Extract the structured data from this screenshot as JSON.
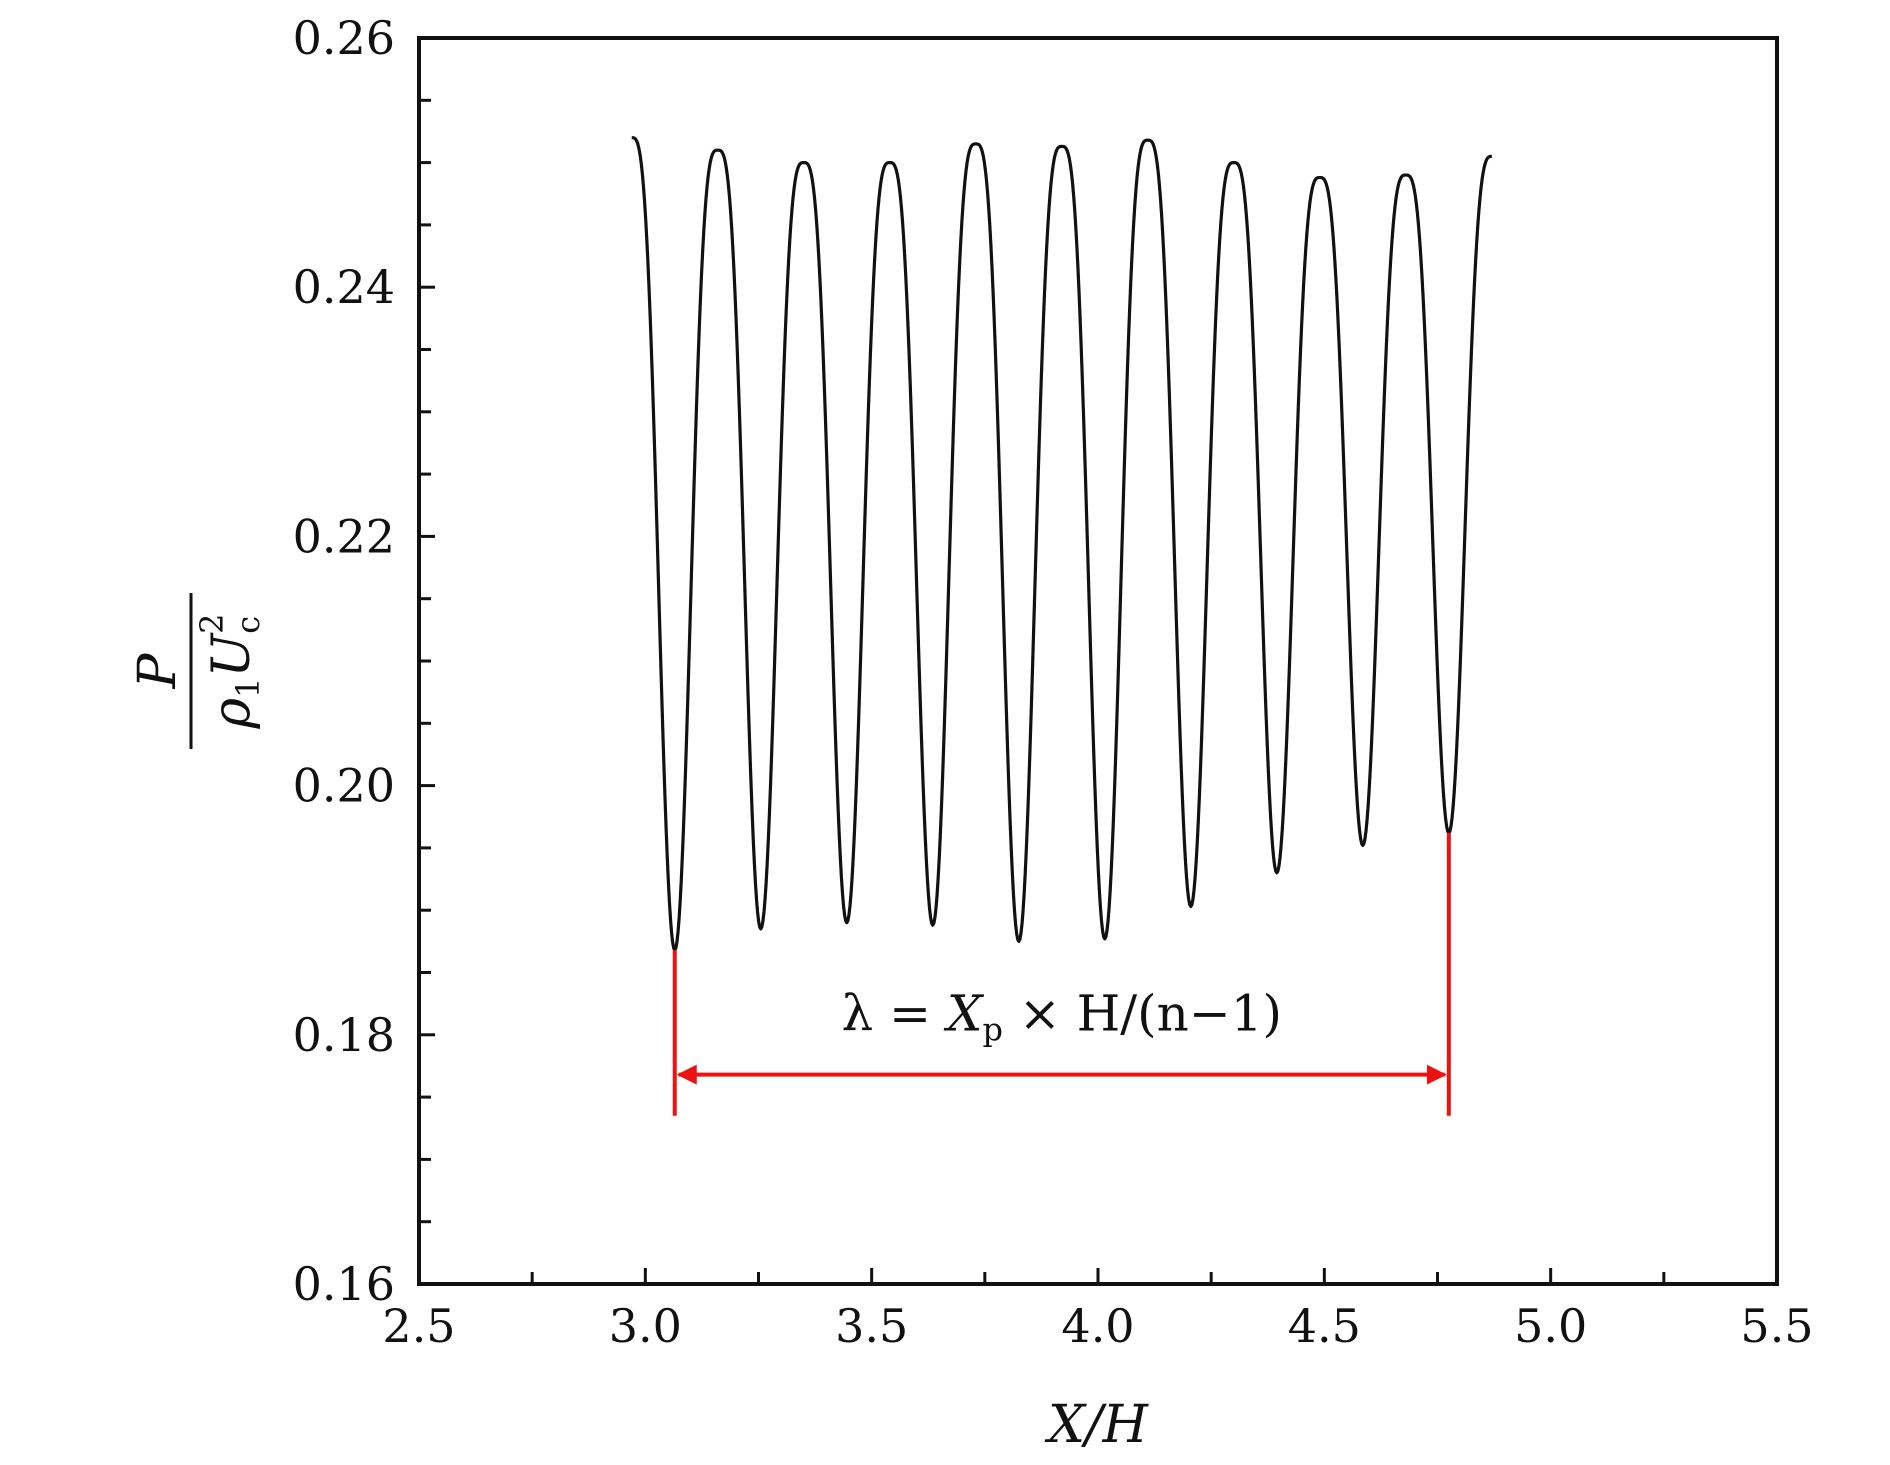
{
  "chart_data": {
    "type": "line",
    "xlabel": "X/H",
    "ylabel": {
      "numerator": "P",
      "denominator": "ρ₁U_c²",
      "denominator_parts": {
        "rho": "ρ",
        "rho_sub": "1",
        "u": "U",
        "u_sub": "c",
        "u_sup": "2"
      }
    },
    "xlim": [
      2.5,
      5.5
    ],
    "ylim": [
      0.16,
      0.26
    ],
    "x_ticks": [
      "2.5",
      "3.0",
      "3.5",
      "4.0",
      "4.5",
      "5.0",
      "5.5"
    ],
    "y_ticks": [
      "0.16",
      "0.18",
      "0.20",
      "0.22",
      "0.24",
      "0.26"
    ],
    "grid": false,
    "series": [
      {
        "color": "#111111",
        "start": {
          "x": 2.97,
          "y": 0.252
        },
        "end": {
          "x": 4.87,
          "y": 0.2505
        },
        "peaks": [
          {
            "x": 3.16,
            "y": 0.251
          },
          {
            "x": 3.35,
            "y": 0.25
          },
          {
            "x": 3.54,
            "y": 0.25
          },
          {
            "x": 3.73,
            "y": 0.2515
          },
          {
            "x": 3.92,
            "y": 0.2513
          },
          {
            "x": 4.11,
            "y": 0.2518
          },
          {
            "x": 4.3,
            "y": 0.25
          },
          {
            "x": 4.49,
            "y": 0.2488
          },
          {
            "x": 4.68,
            "y": 0.249
          }
        ],
        "troughs": [
          {
            "x": 3.065,
            "y": 0.1868
          },
          {
            "x": 3.255,
            "y": 0.1885
          },
          {
            "x": 3.445,
            "y": 0.189
          },
          {
            "x": 3.635,
            "y": 0.1888
          },
          {
            "x": 3.825,
            "y": 0.1875
          },
          {
            "x": 4.015,
            "y": 0.1877
          },
          {
            "x": 4.205,
            "y": 0.1903
          },
          {
            "x": 4.395,
            "y": 0.193
          },
          {
            "x": 4.585,
            "y": 0.1952
          },
          {
            "x": 4.775,
            "y": 0.1962
          }
        ]
      }
    ],
    "annotation": {
      "text": "λ = X_p × H/(n−1)",
      "parts": {
        "lambda_eq": "λ = ",
        "x": "X",
        "x_sub": "p",
        "rest": " × H/(n−1)"
      },
      "color": "#ee1111",
      "x_start": 3.065,
      "x_end": 4.775,
      "y_arrow": 0.1768,
      "y_bottom": 0.1735
    }
  }
}
